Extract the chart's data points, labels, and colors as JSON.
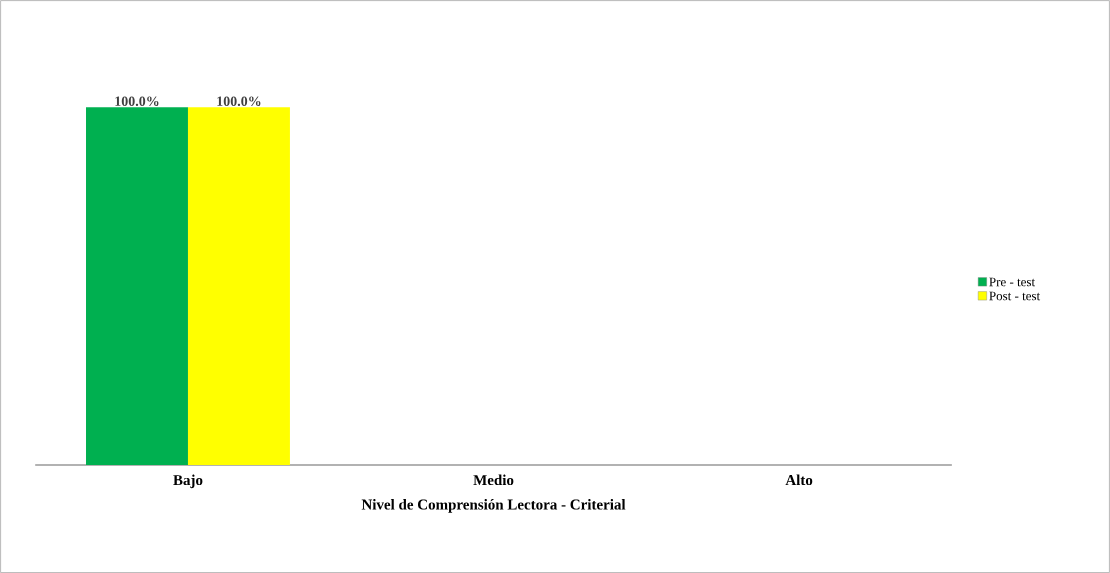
{
  "chart_data": {
    "type": "bar",
    "xlabel": "Nivel de Comprensión Lectora - Criterial",
    "categories": [
      "Bajo",
      "Medio",
      "Alto"
    ],
    "series": [
      {
        "name": "Pre - test",
        "color": "#00b050",
        "values": [
          100,
          0,
          0
        ],
        "value_labels": [
          "100.0%",
          null,
          null
        ]
      },
      {
        "name": "Post - test",
        "color": "#ffff00",
        "values": [
          100,
          0,
          0
        ],
        "value_labels": [
          "100.0%",
          null,
          null
        ]
      }
    ],
    "ylim": [
      0,
      100
    ],
    "legend": "right"
  }
}
